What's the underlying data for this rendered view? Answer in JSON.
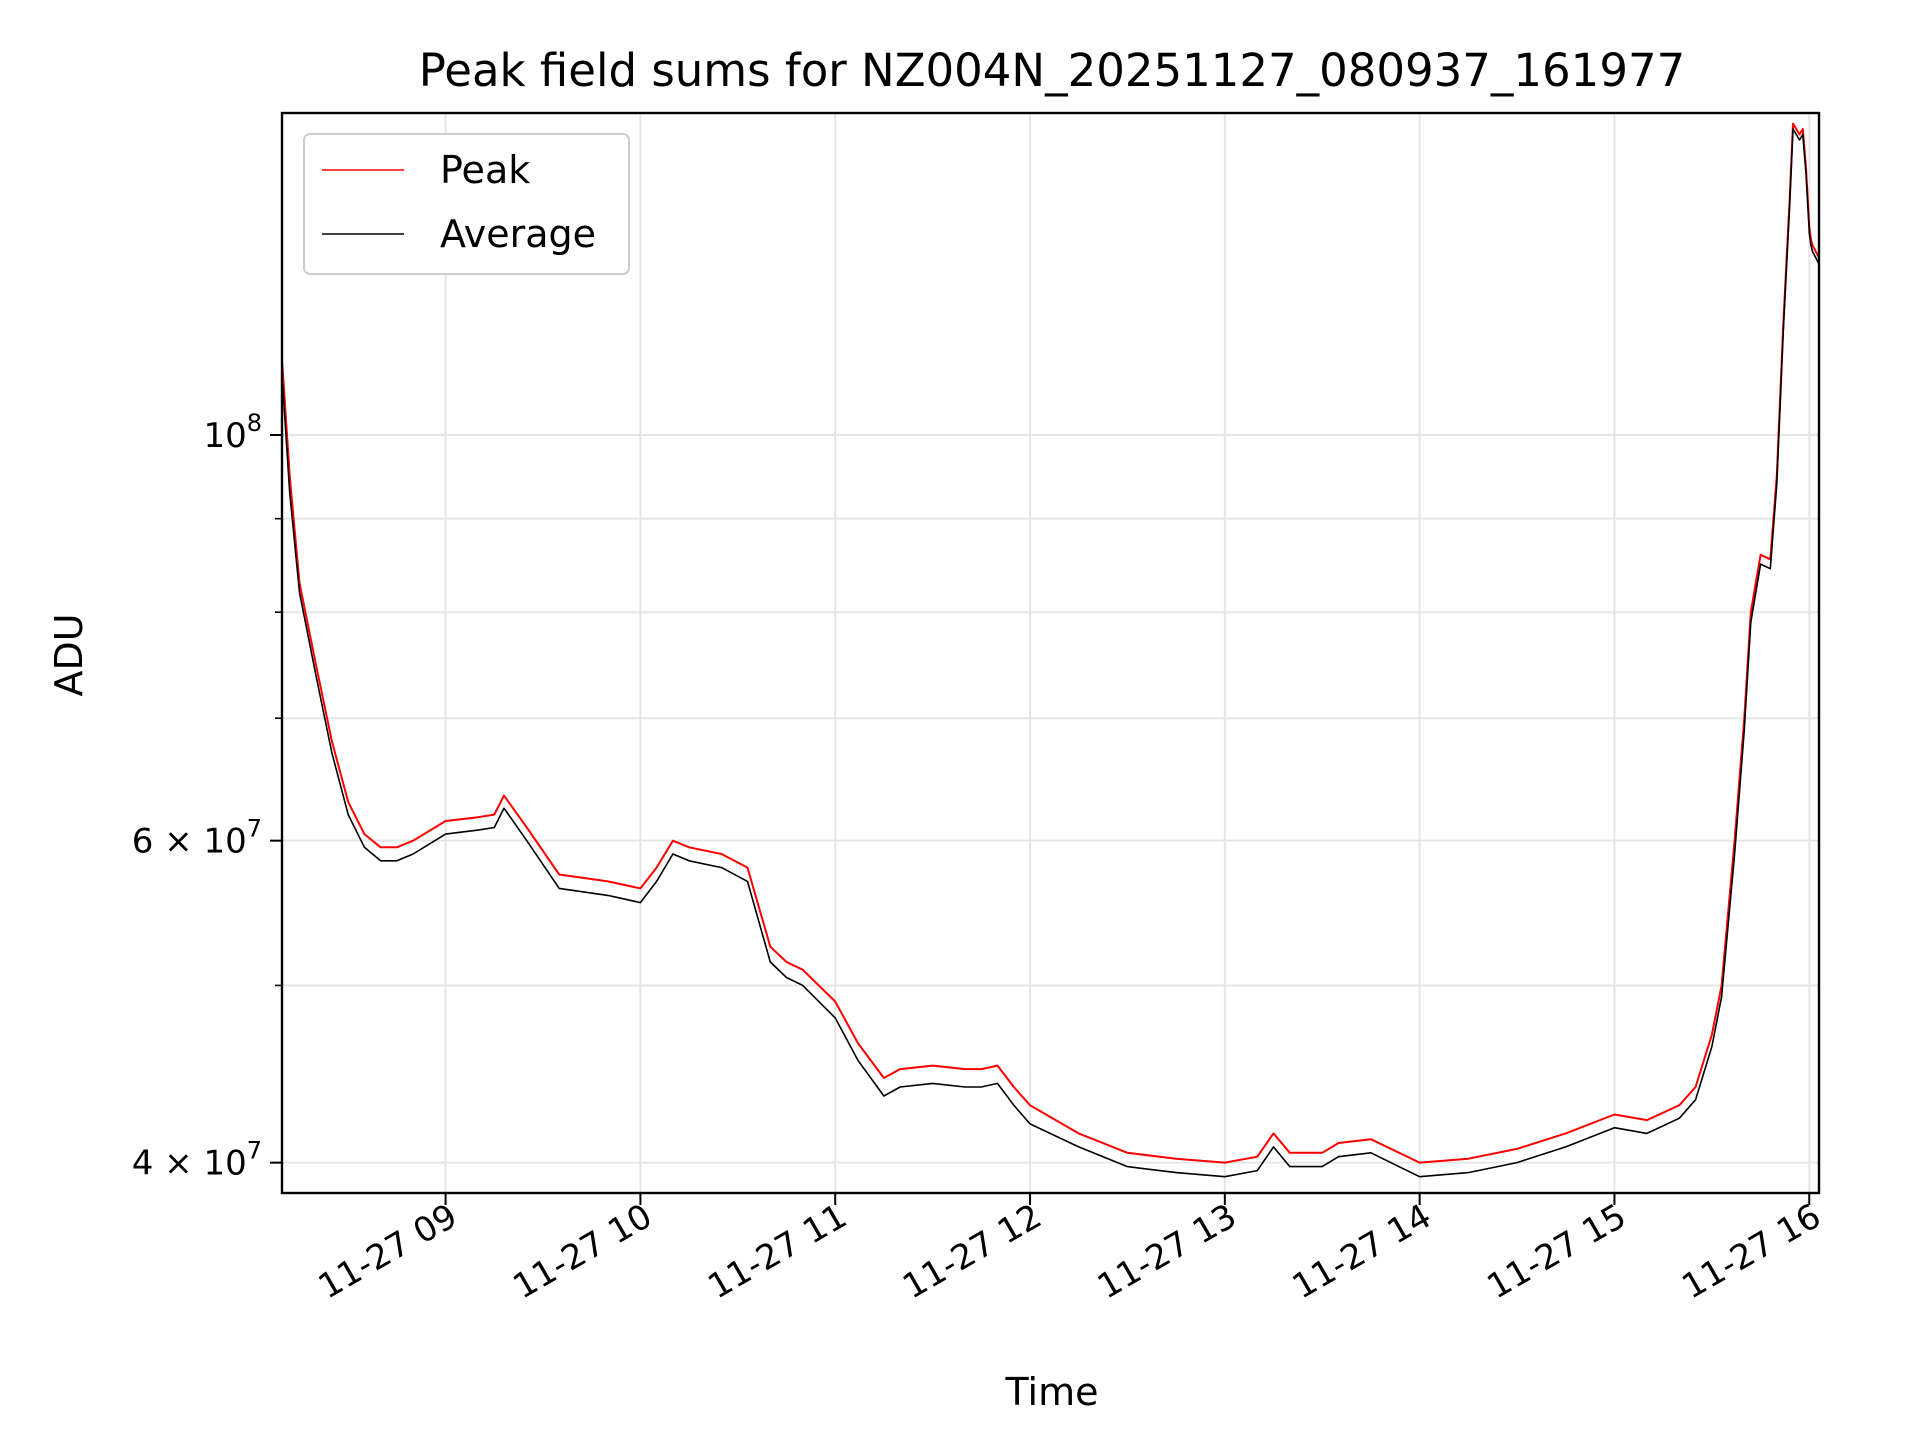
{
  "chart_data": {
    "type": "line",
    "title": "Peak field sums for NZ004N_20251127_080937_161977",
    "xlabel": "Time",
    "ylabel": "ADU",
    "yscale": "log",
    "ylim": [
      38500000,
      150000000
    ],
    "xlim": [
      "2025-11-27 08:09:37",
      "2025-11-27 16:03:00"
    ],
    "grid": true,
    "legend_position": "upper-left",
    "x_ticks": [
      {
        "value": "2025-11-27 09:00",
        "label": "11-27 09"
      },
      {
        "value": "2025-11-27 10:00",
        "label": "11-27 10"
      },
      {
        "value": "2025-11-27 11:00",
        "label": "11-27 11"
      },
      {
        "value": "2025-11-27 12:00",
        "label": "11-27 12"
      },
      {
        "value": "2025-11-27 13:00",
        "label": "11-27 13"
      },
      {
        "value": "2025-11-27 14:00",
        "label": "11-27 14"
      },
      {
        "value": "2025-11-27 15:00",
        "label": "11-27 15"
      },
      {
        "value": "2025-11-27 16:00",
        "label": "11-27 16"
      }
    ],
    "y_ticks": [
      {
        "value": 40000000,
        "mantissa": "4 × 10",
        "exp": "7"
      },
      {
        "value": 60000000,
        "mantissa": "6 × 10",
        "exp": "7"
      },
      {
        "value": 100000000,
        "mantissa": "10",
        "exp": "8"
      }
    ],
    "y_minor_ticks": [
      50000000,
      70000000,
      80000000,
      90000000
    ],
    "x": [
      "2025-11-27 08:09:37",
      "2025-11-27 08:12",
      "2025-11-27 08:15",
      "2025-11-27 08:20",
      "2025-11-27 08:25",
      "2025-11-27 08:30",
      "2025-11-27 08:35",
      "2025-11-27 08:40",
      "2025-11-27 08:45",
      "2025-11-27 08:50",
      "2025-11-27 09:00",
      "2025-11-27 09:10",
      "2025-11-27 09:15",
      "2025-11-27 09:18",
      "2025-11-27 09:25",
      "2025-11-27 09:35",
      "2025-11-27 09:50",
      "2025-11-27 10:00",
      "2025-11-27 10:05",
      "2025-11-27 10:10",
      "2025-11-27 10:15",
      "2025-11-27 10:25",
      "2025-11-27 10:33",
      "2025-11-27 10:40",
      "2025-11-27 10:45",
      "2025-11-27 10:50",
      "2025-11-27 11:00",
      "2025-11-27 11:07",
      "2025-11-27 11:15",
      "2025-11-27 11:20",
      "2025-11-27 11:30",
      "2025-11-27 11:40",
      "2025-11-27 11:45",
      "2025-11-27 11:50",
      "2025-11-27 11:55",
      "2025-11-27 12:00",
      "2025-11-27 12:15",
      "2025-11-27 12:30",
      "2025-11-27 12:45",
      "2025-11-27 13:00",
      "2025-11-27 13:10",
      "2025-11-27 13:15",
      "2025-11-27 13:20",
      "2025-11-27 13:30",
      "2025-11-27 13:35",
      "2025-11-27 13:45",
      "2025-11-27 14:00",
      "2025-11-27 14:15",
      "2025-11-27 14:30",
      "2025-11-27 14:45",
      "2025-11-27 15:00",
      "2025-11-27 15:10",
      "2025-11-27 15:20",
      "2025-11-27 15:25",
      "2025-11-27 15:30",
      "2025-11-27 15:33",
      "2025-11-27 15:37",
      "2025-11-27 15:40",
      "2025-11-27 15:42",
      "2025-11-27 15:45",
      "2025-11-27 15:48",
      "2025-11-27 15:50",
      "2025-11-27 15:52",
      "2025-11-27 15:54",
      "2025-11-27 15:55",
      "2025-11-27 15:56",
      "2025-11-27 15:57",
      "2025-11-27 15:58",
      "2025-11-27 15:59",
      "2025-11-27 16:00",
      "2025-11-27 16:00:30",
      "2025-11-27 16:01",
      "2025-11-27 16:02",
      "2025-11-27 16:03"
    ],
    "series": [
      {
        "name": "Peak",
        "color": "#ff0000",
        "values": [
          110000000,
          95000000,
          83000000,
          75000000,
          68000000,
          63000000,
          60500000,
          59500000,
          59500000,
          60000000,
          61500000,
          61800000,
          62000000,
          63500000,
          61000000,
          57500000,
          57000000,
          56500000,
          58000000,
          60000000,
          59500000,
          59000000,
          58000000,
          52500000,
          51500000,
          51000000,
          49000000,
          46500000,
          44500000,
          45000000,
          45200000,
          45000000,
          45000000,
          45200000,
          44000000,
          43000000,
          41500000,
          40500000,
          40200000,
          40000000,
          40300000,
          41500000,
          40500000,
          40500000,
          41000000,
          41200000,
          40000000,
          40200000,
          40700000,
          41500000,
          42500000,
          42200000,
          43000000,
          44000000,
          47000000,
          50000000,
          60000000,
          70000000,
          80000000,
          86000000,
          85500000,
          95000000,
          115000000,
          135000000,
          148000000,
          147000000,
          146000000,
          147000000,
          140000000,
          130000000,
          128000000,
          127000000,
          126000000,
          125000000
        ]
      },
      {
        "name": "Average",
        "color": "#000000",
        "values": [
          108000000,
          93000000,
          82000000,
          74000000,
          67000000,
          62000000,
          59500000,
          58500000,
          58500000,
          59000000,
          60500000,
          60800000,
          61000000,
          62500000,
          60000000,
          56500000,
          56000000,
          55500000,
          57000000,
          59000000,
          58500000,
          58000000,
          57000000,
          51500000,
          50500000,
          50000000,
          48000000,
          45500000,
          43500000,
          44000000,
          44200000,
          44000000,
          44000000,
          44200000,
          43000000,
          42000000,
          40800000,
          39800000,
          39500000,
          39300000,
          39600000,
          40800000,
          39800000,
          39800000,
          40300000,
          40500000,
          39300000,
          39500000,
          40000000,
          40800000,
          41800000,
          41500000,
          42300000,
          43300000,
          46300000,
          49300000,
          59000000,
          69000000,
          79000000,
          85000000,
          84500000,
          94000000,
          114000000,
          134000000,
          147000000,
          146000000,
          145000000,
          146000000,
          139000000,
          129000000,
          127000000,
          126000000,
          125000000,
          124000000
        ]
      }
    ]
  }
}
